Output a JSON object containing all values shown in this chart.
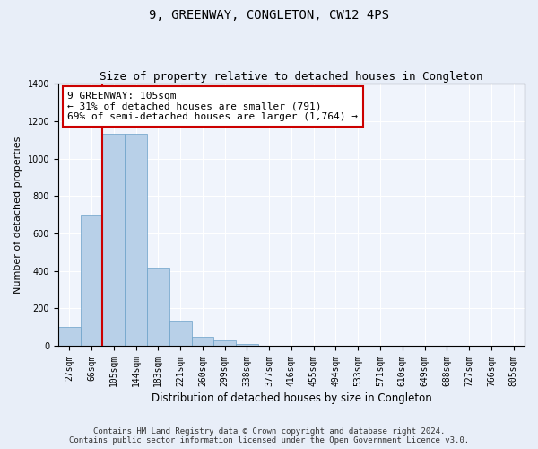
{
  "title": "9, GREENWAY, CONGLETON, CW12 4PS",
  "subtitle": "Size of property relative to detached houses in Congleton",
  "xlabel": "Distribution of detached houses by size in Congleton",
  "ylabel": "Number of detached properties",
  "categories": [
    "27sqm",
    "66sqm",
    "105sqm",
    "144sqm",
    "183sqm",
    "221sqm",
    "260sqm",
    "299sqm",
    "338sqm",
    "377sqm",
    "416sqm",
    "455sqm",
    "494sqm",
    "533sqm",
    "571sqm",
    "610sqm",
    "649sqm",
    "688sqm",
    "727sqm",
    "766sqm",
    "805sqm"
  ],
  "values": [
    100,
    700,
    1130,
    1130,
    420,
    130,
    50,
    30,
    10,
    0,
    0,
    0,
    0,
    0,
    0,
    0,
    0,
    0,
    0,
    0,
    0
  ],
  "bar_color": "#b8d0e8",
  "bar_edgecolor": "#6aa0c8",
  "property_line_color": "#cc0000",
  "annotation_text": "9 GREENWAY: 105sqm\n← 31% of detached houses are smaller (791)\n69% of semi-detached houses are larger (1,764) →",
  "annotation_box_edgecolor": "#cc0000",
  "ylim": [
    0,
    1400
  ],
  "yticks": [
    0,
    200,
    400,
    600,
    800,
    1000,
    1200,
    1400
  ],
  "figure_bg_color": "#e8eef8",
  "axes_bg_color": "#f0f4fc",
  "grid_color": "#ffffff",
  "footer_line1": "Contains HM Land Registry data © Crown copyright and database right 2024.",
  "footer_line2": "Contains public sector information licensed under the Open Government Licence v3.0.",
  "title_fontsize": 10,
  "subtitle_fontsize": 9,
  "xlabel_fontsize": 8.5,
  "ylabel_fontsize": 8,
  "tick_fontsize": 7,
  "annotation_fontsize": 8,
  "footer_fontsize": 6.5
}
